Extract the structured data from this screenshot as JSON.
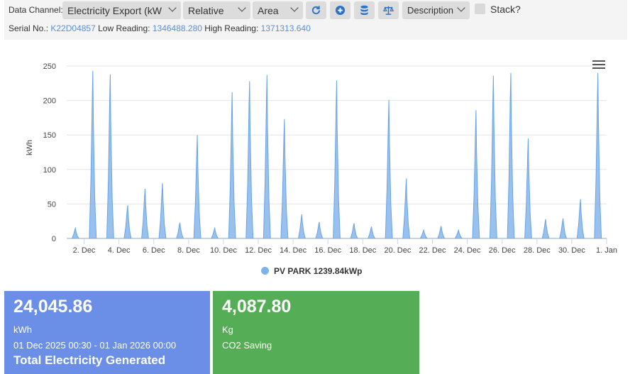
{
  "toolbar": {
    "channel_label": "Data Channel:",
    "channel_value": "Electricity Export (kWh)",
    "mode_value": "Relative",
    "chart_type_value": "Area",
    "label_value": "Description",
    "stack_label": "Stack?",
    "icons": [
      "refresh-icon",
      "plus-circle-icon",
      "database-icon",
      "scale-icon"
    ]
  },
  "meter": {
    "serial_label": "Serial No.:",
    "serial_value": "K22D04857",
    "low_label": "Low Reading:",
    "low_value": "1346488.280",
    "high_label": "High Reading:",
    "high_value": "1371313.640"
  },
  "chart_data": {
    "type": "area",
    "ylabel": "kWh",
    "ylim": [
      0,
      250
    ],
    "yticks": [
      0,
      50,
      100,
      150,
      200,
      250
    ],
    "grid": true,
    "legend_position": "bottom-center",
    "color": "#7fb2ea",
    "x_tick_labels": [
      "2. Dec",
      "4. Dec",
      "6. Dec",
      "8. Dec",
      "10. Dec",
      "12. Dec",
      "14. Dec",
      "16. Dec",
      "18. Dec",
      "20. Dec",
      "22. Dec",
      "24. Dec",
      "26. Dec",
      "28. Dec",
      "30. Dec",
      "1. Jan"
    ],
    "series": [
      {
        "name": "PV PARK 1239.84kWp",
        "daily_peak_kwh": [
          15,
          243,
          238,
          48,
          72,
          80,
          23,
          150,
          15,
          212,
          228,
          237,
          173,
          35,
          24,
          229,
          22,
          17,
          201,
          87,
          12,
          18,
          12,
          186,
          236,
          240,
          145,
          28,
          29,
          57,
          240
        ]
      }
    ]
  },
  "cards": [
    {
      "value": "24,045.86",
      "unit": "kWh",
      "period": "01 Dec 2025 00:30 - 01 Jan 2026 00:00",
      "title": "Total Electricity Generated",
      "color": "#6b8fe6"
    },
    {
      "value": "4,087.80",
      "unit": "Kg",
      "title": "CO2 Saving",
      "color": "#55ad55"
    }
  ]
}
